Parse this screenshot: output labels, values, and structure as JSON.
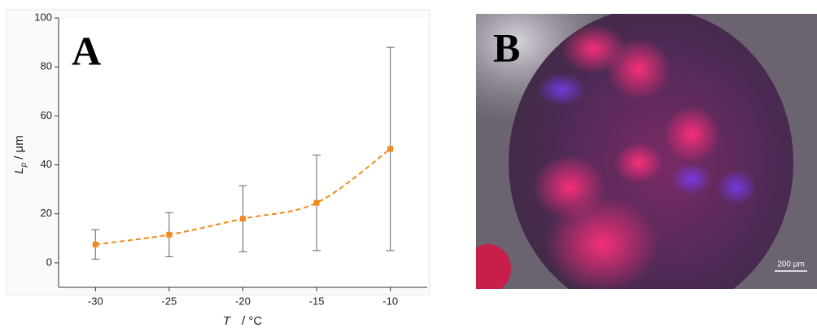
{
  "chart_data": {
    "type": "line",
    "ylabel_symbol": "L",
    "ylabel_subscript": "p",
    "ylabel_unit": "/ μm",
    "xlabel_symbol": "T",
    "xlabel_unit": "/ °C",
    "x": [
      -30,
      -25,
      -20,
      -15,
      -10
    ],
    "values": [
      7.5,
      11.5,
      18,
      24.5,
      46.5
    ],
    "errors": [
      6,
      9,
      13.5,
      19.5,
      41.5
    ],
    "color": "#f08a1c",
    "xlim": [
      -32.5,
      -7.5
    ],
    "ylim": [
      -10,
      100
    ],
    "xticks": [
      -30,
      -25,
      -20,
      -15,
      -10
    ],
    "yticks": [
      0,
      20,
      40,
      60,
      80,
      100
    ]
  },
  "panel_a": {
    "label": "A"
  },
  "panel_b": {
    "label": "B",
    "scale_bar": "200 µm"
  }
}
